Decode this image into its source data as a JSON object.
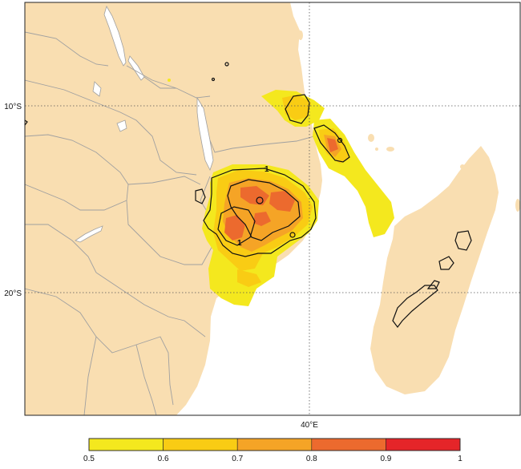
{
  "map": {
    "latitude_labels": [
      "10°S",
      "20°S"
    ],
    "longitude_labels": [
      "40°E"
    ],
    "contour_labels": [
      "1",
      "1"
    ],
    "land_color": "#f9deb1",
    "sea_color": "#ffffff",
    "lake_color": "#ffffff",
    "border_color": "#a0a0a0",
    "contour_color": "#111111",
    "gridline_style": "dotted"
  },
  "colorbar": {
    "ticks": [
      "0.5",
      "0.6",
      "0.7",
      "0.8",
      "0.9",
      "1"
    ],
    "bins": [
      {
        "from": 0.5,
        "to": 0.6,
        "color": "#f4e81e"
      },
      {
        "from": 0.6,
        "to": 0.7,
        "color": "#f9cc14"
      },
      {
        "from": 0.7,
        "to": 0.8,
        "color": "#f5a426"
      },
      {
        "from": 0.8,
        "to": 0.9,
        "color": "#ec6a2e"
      },
      {
        "from": 0.9,
        "to": 1.0,
        "color": "#e52529"
      }
    ]
  }
}
